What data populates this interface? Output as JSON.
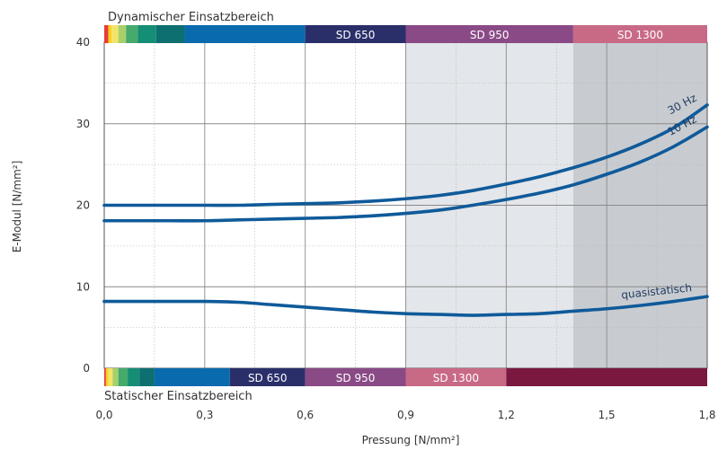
{
  "chart_data": {
    "type": "line",
    "xlabel": "Pressung [N/mm²]",
    "ylabel": "E-Modul [N/mm²]",
    "xlim": [
      0,
      1.8
    ],
    "ylim": [
      0,
      40
    ],
    "x_ticks": [
      "0,0",
      "0,3",
      "0,6",
      "0,9",
      "1,2",
      "1,5",
      "1,8"
    ],
    "y_ticks": [
      "0",
      "10",
      "20",
      "30",
      "40"
    ],
    "grid": true,
    "dynamic_band": {
      "title": "Dynamischer Einsatzbereich",
      "segments": [
        {
          "x0": 0.0,
          "x1": 0.012,
          "color": "#e63b3b",
          "label": ""
        },
        {
          "x0": 0.012,
          "x1": 0.022,
          "color": "#f6d021",
          "label": ""
        },
        {
          "x0": 0.022,
          "x1": 0.042,
          "color": "#f2e46a",
          "label": ""
        },
        {
          "x0": 0.042,
          "x1": 0.065,
          "color": "#a9cf6a",
          "label": ""
        },
        {
          "x0": 0.065,
          "x1": 0.1,
          "color": "#45aa6c",
          "label": ""
        },
        {
          "x0": 0.1,
          "x1": 0.155,
          "color": "#148e74",
          "label": ""
        },
        {
          "x0": 0.155,
          "x1": 0.24,
          "color": "#0d6f70",
          "label": ""
        },
        {
          "x0": 0.24,
          "x1": 0.6,
          "color": "#0a6aae",
          "label": ""
        },
        {
          "x0": 0.6,
          "x1": 0.9,
          "color": "#2a2f6a",
          "label": "SD 650"
        },
        {
          "x0": 0.9,
          "x1": 1.4,
          "color": "#8a4a86",
          "label": "SD 950"
        },
        {
          "x0": 1.4,
          "x1": 1.8,
          "color": "#c86a86",
          "label": "SD 1300"
        }
      ]
    },
    "static_band": {
      "title": "Statischer Einsatzbereich",
      "segments": [
        {
          "x0": 0.0,
          "x1": 0.005,
          "color": "#e63b3b",
          "label": ""
        },
        {
          "x0": 0.005,
          "x1": 0.012,
          "color": "#f6d021",
          "label": ""
        },
        {
          "x0": 0.012,
          "x1": 0.025,
          "color": "#f2e46a",
          "label": ""
        },
        {
          "x0": 0.025,
          "x1": 0.042,
          "color": "#a9cf6a",
          "label": ""
        },
        {
          "x0": 0.042,
          "x1": 0.07,
          "color": "#45aa6c",
          "label": ""
        },
        {
          "x0": 0.07,
          "x1": 0.105,
          "color": "#148e74",
          "label": ""
        },
        {
          "x0": 0.105,
          "x1": 0.15,
          "color": "#0d6f70",
          "label": ""
        },
        {
          "x0": 0.15,
          "x1": 0.375,
          "color": "#0a6aae",
          "label": ""
        },
        {
          "x0": 0.375,
          "x1": 0.6,
          "color": "#2a2f6a",
          "label": "SD 650"
        },
        {
          "x0": 0.6,
          "x1": 0.9,
          "color": "#8a4a86",
          "label": "SD 950"
        },
        {
          "x0": 0.9,
          "x1": 1.2,
          "color": "#c86a86",
          "label": "SD 1300"
        },
        {
          "x0": 1.2,
          "x1": 1.8,
          "color": "#7a1840",
          "label": ""
        }
      ]
    },
    "shaded_regions": [
      {
        "x0": 0.9,
        "x1": 1.4,
        "color": "#e3e6ea"
      },
      {
        "x0": 1.4,
        "x1": 1.8,
        "color": "#c8ccd1"
      }
    ],
    "series": [
      {
        "name": "30 Hz",
        "color": "#0f5a9a",
        "x": [
          0.0,
          0.1,
          0.2,
          0.3,
          0.4,
          0.5,
          0.6,
          0.7,
          0.8,
          0.9,
          1.0,
          1.1,
          1.2,
          1.3,
          1.4,
          1.5,
          1.6,
          1.7,
          1.8
        ],
        "y": [
          20.0,
          20.0,
          20.0,
          20.0,
          20.0,
          20.1,
          20.2,
          20.3,
          20.5,
          20.8,
          21.2,
          21.8,
          22.6,
          23.5,
          24.6,
          25.9,
          27.5,
          29.5,
          32.3
        ]
      },
      {
        "name": "10 Hz",
        "color": "#0f5a9a",
        "x": [
          0.0,
          0.1,
          0.2,
          0.3,
          0.4,
          0.5,
          0.6,
          0.7,
          0.8,
          0.9,
          1.0,
          1.1,
          1.2,
          1.3,
          1.4,
          1.5,
          1.6,
          1.7,
          1.8
        ],
        "y": [
          18.1,
          18.1,
          18.1,
          18.1,
          18.2,
          18.3,
          18.4,
          18.5,
          18.7,
          19.0,
          19.4,
          20.0,
          20.7,
          21.5,
          22.5,
          23.8,
          25.3,
          27.2,
          29.6
        ]
      },
      {
        "name": "quasistatisch",
        "color": "#0f5a9a",
        "x": [
          0.0,
          0.1,
          0.2,
          0.3,
          0.4,
          0.5,
          0.6,
          0.7,
          0.8,
          0.9,
          1.0,
          1.1,
          1.2,
          1.3,
          1.4,
          1.5,
          1.6,
          1.7,
          1.8
        ],
        "y": [
          8.2,
          8.2,
          8.2,
          8.2,
          8.1,
          7.8,
          7.5,
          7.2,
          6.9,
          6.7,
          6.6,
          6.5,
          6.6,
          6.7,
          7.0,
          7.3,
          7.7,
          8.2,
          8.8
        ]
      }
    ],
    "curve_labels": [
      {
        "text": "30 Hz",
        "x": 1.73,
        "y": 32.0,
        "angle": -28
      },
      {
        "text": "10 Hz",
        "x": 1.73,
        "y": 29.4,
        "angle": -28
      },
      {
        "text": "quasistatisch",
        "x": 1.65,
        "y": 9.0,
        "angle": -6
      }
    ]
  }
}
